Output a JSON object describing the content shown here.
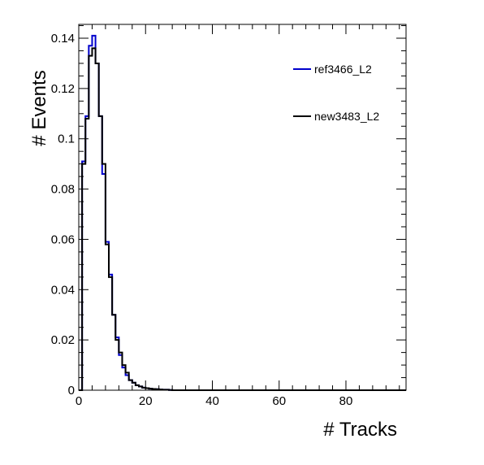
{
  "chart_data": {
    "type": "line",
    "style": "step-histogram",
    "xlabel": "# Tracks",
    "ylabel": "# Events",
    "xlim": [
      0,
      98
    ],
    "ylim": [
      0,
      0.1455
    ],
    "bin_width": 1,
    "x_ticks": [
      0,
      20,
      40,
      60,
      80
    ],
    "y_ticks": [
      0,
      0.02,
      0.04,
      0.06,
      0.08,
      0.1,
      0.12,
      0.14
    ],
    "x_tick_labels": [
      "0",
      "20",
      "40",
      "60",
      "80"
    ],
    "y_tick_labels": [
      "0",
      "0.02",
      "0.04",
      "0.06",
      "0.08",
      "0.1",
      "0.12",
      "0.14"
    ],
    "grid": false,
    "legend_position": "top-right",
    "series": [
      {
        "name": "ref3466_L2",
        "color": "#0000cc",
        "values": [
          0.0,
          0.091,
          0.109,
          0.137,
          0.141,
          0.13,
          0.109,
          0.086,
          0.059,
          0.046,
          0.03,
          0.021,
          0.014,
          0.009,
          0.006,
          0.004,
          0.003,
          0.002,
          0.0015,
          0.001,
          0.0008,
          0.0006,
          0.0005,
          0.0004,
          0.0003,
          0.0002,
          0.0002,
          0.0001
        ]
      },
      {
        "name": "new3483_L2",
        "color": "#000000",
        "values": [
          0.0,
          0.09,
          0.108,
          0.133,
          0.136,
          0.13,
          0.109,
          0.09,
          0.058,
          0.045,
          0.03,
          0.02,
          0.015,
          0.01,
          0.007,
          0.004,
          0.003,
          0.002,
          0.0015,
          0.001,
          0.0008,
          0.0006,
          0.0005,
          0.0004,
          0.0003,
          0.0002,
          0.0002,
          0.0001
        ]
      }
    ]
  }
}
